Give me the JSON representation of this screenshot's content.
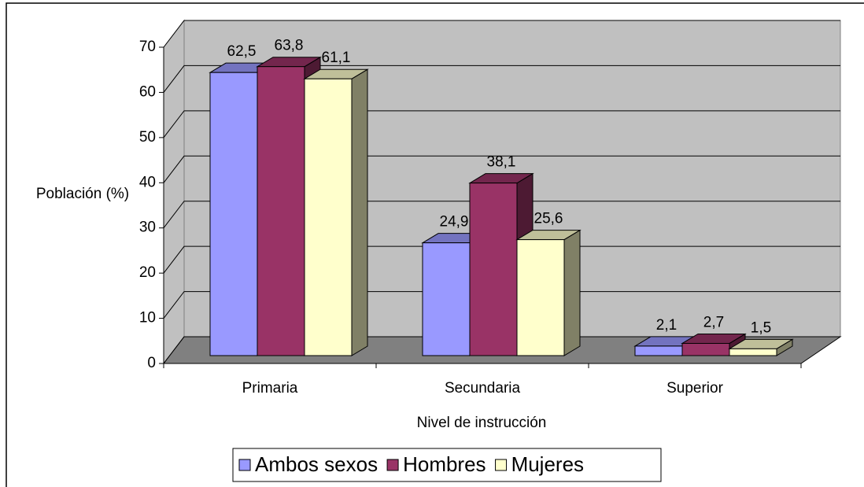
{
  "chart_data": {
    "type": "bar3d",
    "categories": [
      "Primaria",
      "Secundaria",
      "Superior"
    ],
    "series": [
      {
        "name": "Ambos sexos",
        "color": "#9999ff",
        "values": [
          62.5,
          24.9,
          2.1
        ],
        "value_labels": [
          "62,5",
          "24,9",
          "2,1"
        ]
      },
      {
        "name": "Hombres",
        "color": "#993366",
        "values": [
          63.8,
          38.1,
          2.7
        ],
        "value_labels": [
          "63,8",
          "38,1",
          "2,7"
        ]
      },
      {
        "name": "Mujeres",
        "color": "#ffffcc",
        "values": [
          61.1,
          25.6,
          1.5
        ],
        "value_labels": [
          "61,1",
          "25,6",
          "1,5"
        ]
      }
    ],
    "ylabel": "Población (%)",
    "xlabel": "Nivel de instrucción",
    "ylim": [
      0,
      70
    ],
    "yticks": [
      0,
      10,
      20,
      30,
      40,
      50,
      60,
      70
    ],
    "grid": true
  }
}
